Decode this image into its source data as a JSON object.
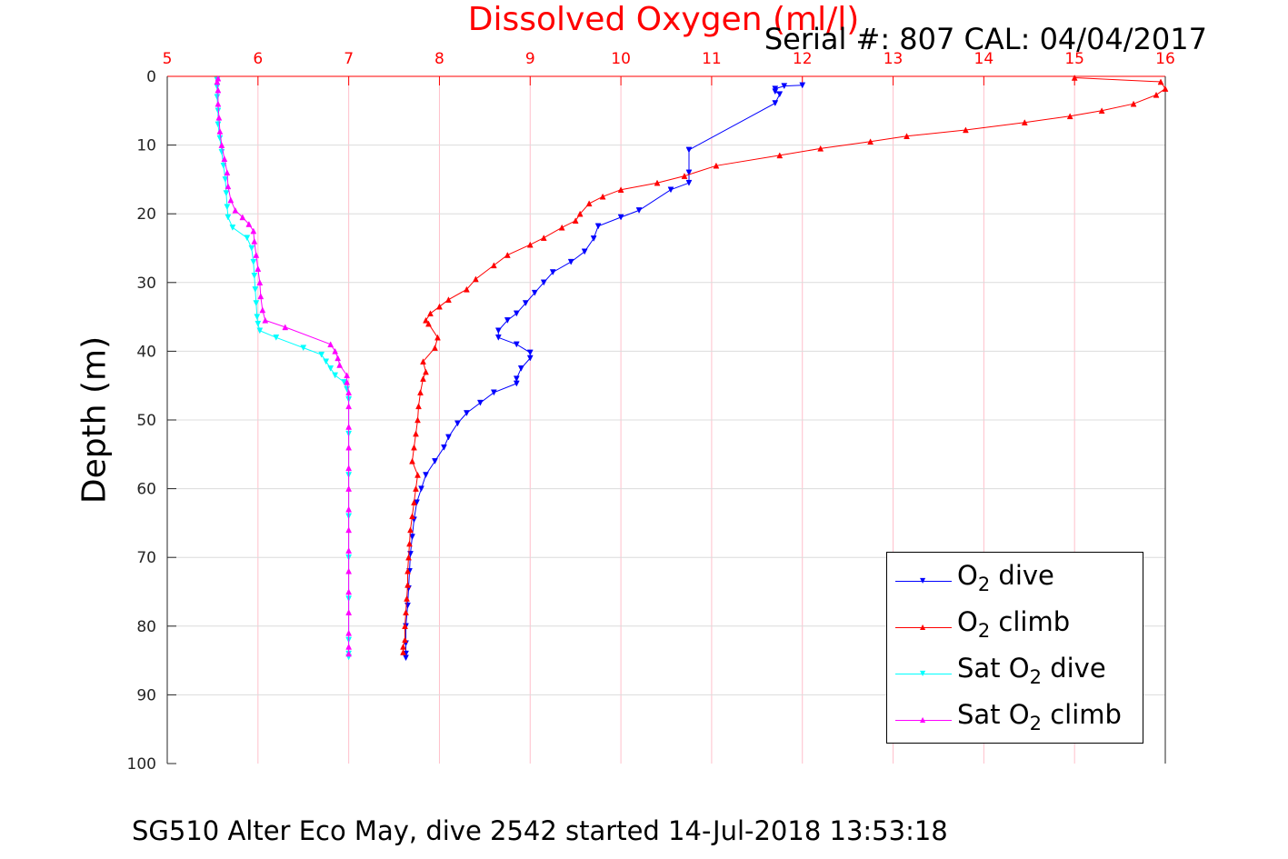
{
  "chart_data": {
    "type": "line",
    "title": "Dissolved Oxygen (ml/l)",
    "title_color": "#ff0000",
    "subtitle": "Serial #: 807  CAL: 04/04/2017",
    "xlabel": "",
    "ylabel": "Depth (m)",
    "footer": "SG510 Alter Eco May, dive 2542 started 14-Jul-2018 13:53:18",
    "xlim": [
      5,
      16
    ],
    "ylim": [
      0,
      100
    ],
    "y_reversed": true,
    "x_axis_position": "top",
    "x_tick_color": "#ff0000",
    "x_gridline_color": "#ffc0cb",
    "xticks": [
      "5",
      "6",
      "7",
      "8",
      "9",
      "10",
      "11",
      "12",
      "13",
      "14",
      "15",
      "16"
    ],
    "yticks": [
      "0",
      "10",
      "20",
      "30",
      "40",
      "50",
      "60",
      "70",
      "80",
      "90",
      "100"
    ],
    "grid": true,
    "legend_position": "bottom-right",
    "legend": [
      {
        "prefix": "O",
        "sub": "2",
        "suffix": " dive",
        "color": "#0000ff",
        "marker": "▼"
      },
      {
        "prefix": "O",
        "sub": "2",
        "suffix": " climb",
        "color": "#ff0000",
        "marker": "▲"
      },
      {
        "prefix": "Sat O",
        "sub": "2",
        "suffix": " dive",
        "color": "#00ffff",
        "marker": "▼"
      },
      {
        "prefix": "Sat O",
        "sub": "2",
        "suffix": " climb",
        "color": "#ff00ff",
        "marker": "▲"
      }
    ],
    "series": [
      {
        "name": "O2 dive",
        "color": "#0000ff",
        "marker": "down",
        "points": [
          [
            12.0,
            1.3
          ],
          [
            11.8,
            1.4
          ],
          [
            11.7,
            1.8
          ],
          [
            11.7,
            2.2
          ],
          [
            11.75,
            2.6
          ],
          [
            11.7,
            3.9
          ],
          [
            10.75,
            10.7
          ],
          [
            10.75,
            14.0
          ],
          [
            10.75,
            15.5
          ],
          [
            10.55,
            16.5
          ],
          [
            10.2,
            19.5
          ],
          [
            10.0,
            20.5
          ],
          [
            9.75,
            21.8
          ],
          [
            9.7,
            23.6
          ],
          [
            9.6,
            25.5
          ],
          [
            9.45,
            27.0
          ],
          [
            9.25,
            28.5
          ],
          [
            9.15,
            30.0
          ],
          [
            9.05,
            31.5
          ],
          [
            8.95,
            33.0
          ],
          [
            8.85,
            34.5
          ],
          [
            8.75,
            35.5
          ],
          [
            8.65,
            37.0
          ],
          [
            8.65,
            38.0
          ],
          [
            8.85,
            39.0
          ],
          [
            9.0,
            40.2
          ],
          [
            9.0,
            41.0
          ],
          [
            8.9,
            42.5
          ],
          [
            8.85,
            44.0
          ],
          [
            8.85,
            44.7
          ],
          [
            8.6,
            46.0
          ],
          [
            8.45,
            47.5
          ],
          [
            8.3,
            49.0
          ],
          [
            8.2,
            50.5
          ],
          [
            8.1,
            52.5
          ],
          [
            8.05,
            54.0
          ],
          [
            7.95,
            56.0
          ],
          [
            7.85,
            58.0
          ],
          [
            7.8,
            60.0
          ],
          [
            7.75,
            62.0
          ],
          [
            7.72,
            64.5
          ],
          [
            7.7,
            67.0
          ],
          [
            7.68,
            69.5
          ],
          [
            7.67,
            72.0
          ],
          [
            7.66,
            74.5
          ],
          [
            7.65,
            77.0
          ],
          [
            7.63,
            80.0
          ],
          [
            7.63,
            82.5
          ],
          [
            7.63,
            84.0
          ],
          [
            7.63,
            84.6
          ]
        ]
      },
      {
        "name": "O2 climb",
        "color": "#ff0000",
        "marker": "up",
        "points": [
          [
            7.6,
            83.8
          ],
          [
            7.6,
            83.0
          ],
          [
            7.62,
            82.0
          ],
          [
            7.62,
            80.0
          ],
          [
            7.63,
            78.0
          ],
          [
            7.64,
            76.0
          ],
          [
            7.65,
            74.0
          ],
          [
            7.65,
            72.0
          ],
          [
            7.66,
            70.0
          ],
          [
            7.67,
            68.0
          ],
          [
            7.68,
            66.0
          ],
          [
            7.7,
            64.0
          ],
          [
            7.72,
            62.0
          ],
          [
            7.74,
            60.0
          ],
          [
            7.76,
            58.0
          ],
          [
            7.7,
            56.0
          ],
          [
            7.72,
            54.0
          ],
          [
            7.74,
            52.0
          ],
          [
            7.76,
            50.0
          ],
          [
            7.77,
            48.0
          ],
          [
            7.79,
            46.0
          ],
          [
            7.82,
            44.0
          ],
          [
            7.85,
            43.0
          ],
          [
            7.82,
            41.5
          ],
          [
            7.95,
            39.5
          ],
          [
            7.98,
            38.0
          ],
          [
            7.88,
            36.0
          ],
          [
            7.85,
            35.5
          ],
          [
            7.9,
            34.5
          ],
          [
            8.0,
            33.5
          ],
          [
            8.1,
            32.5
          ],
          [
            8.3,
            31.0
          ],
          [
            8.4,
            29.5
          ],
          [
            8.6,
            27.5
          ],
          [
            8.75,
            26.0
          ],
          [
            9.0,
            24.5
          ],
          [
            9.15,
            23.5
          ],
          [
            9.35,
            22.0
          ],
          [
            9.5,
            21.0
          ],
          [
            9.55,
            20.0
          ],
          [
            9.65,
            18.5
          ],
          [
            9.8,
            17.5
          ],
          [
            10.0,
            16.5
          ],
          [
            10.4,
            15.5
          ],
          [
            10.7,
            14.5
          ],
          [
            11.05,
            13.0
          ],
          [
            11.75,
            11.5
          ],
          [
            12.2,
            10.5
          ],
          [
            12.75,
            9.5
          ],
          [
            13.15,
            8.7
          ],
          [
            13.8,
            7.8
          ],
          [
            14.45,
            6.7
          ],
          [
            14.95,
            5.8
          ],
          [
            15.3,
            5.0
          ],
          [
            15.65,
            4.0
          ],
          [
            15.9,
            2.7
          ],
          [
            16.0,
            1.8
          ],
          [
            15.95,
            0.8
          ],
          [
            15.0,
            0.2
          ]
        ]
      },
      {
        "name": "Sat O2 dive",
        "color": "#00ffff",
        "marker": "down",
        "points": [
          [
            5.55,
            0.5
          ],
          [
            5.55,
            1.5
          ],
          [
            5.55,
            3.0
          ],
          [
            5.56,
            5.0
          ],
          [
            5.56,
            7.0
          ],
          [
            5.58,
            9.0
          ],
          [
            5.6,
            11.0
          ],
          [
            5.62,
            13.0
          ],
          [
            5.64,
            15.0
          ],
          [
            5.65,
            17.0
          ],
          [
            5.66,
            19.0
          ],
          [
            5.67,
            20.5
          ],
          [
            5.72,
            22.0
          ],
          [
            5.88,
            23.5
          ],
          [
            5.93,
            25.0
          ],
          [
            5.95,
            27.0
          ],
          [
            5.96,
            29.0
          ],
          [
            5.97,
            31.0
          ],
          [
            5.98,
            33.0
          ],
          [
            5.99,
            35.0
          ],
          [
            6.0,
            36.0
          ],
          [
            6.02,
            37.0
          ],
          [
            6.2,
            38.0
          ],
          [
            6.5,
            39.5
          ],
          [
            6.7,
            40.5
          ],
          [
            6.75,
            41.5
          ],
          [
            6.8,
            42.5
          ],
          [
            6.85,
            43.5
          ],
          [
            6.95,
            44.5
          ],
          [
            6.98,
            45.5
          ],
          [
            7.0,
            47.0
          ],
          [
            7.0,
            52.0
          ],
          [
            7.0,
            58.0
          ],
          [
            7.0,
            64.0
          ],
          [
            7.0,
            70.0
          ],
          [
            7.0,
            76.0
          ],
          [
            7.0,
            82.0
          ],
          [
            7.0,
            84.0
          ],
          [
            7.0,
            84.5
          ]
        ]
      },
      {
        "name": "Sat O2 climb",
        "color": "#ff00ff",
        "marker": "up",
        "points": [
          [
            7.0,
            84.0
          ],
          [
            7.0,
            83.0
          ],
          [
            7.0,
            81.0
          ],
          [
            7.0,
            78.0
          ],
          [
            7.0,
            75.0
          ],
          [
            7.0,
            72.0
          ],
          [
            7.0,
            69.0
          ],
          [
            7.0,
            66.0
          ],
          [
            7.0,
            63.0
          ],
          [
            7.0,
            60.0
          ],
          [
            7.0,
            57.0
          ],
          [
            7.0,
            54.0
          ],
          [
            7.0,
            51.0
          ],
          [
            7.0,
            48.0
          ],
          [
            7.0,
            46.0
          ],
          [
            6.98,
            44.5
          ],
          [
            6.98,
            43.5
          ],
          [
            6.9,
            42.0
          ],
          [
            6.88,
            41.0
          ],
          [
            6.85,
            40.0
          ],
          [
            6.8,
            39.0
          ],
          [
            6.3,
            36.5
          ],
          [
            6.08,
            35.5
          ],
          [
            6.05,
            34.0
          ],
          [
            6.03,
            32.0
          ],
          [
            6.02,
            30.0
          ],
          [
            6.0,
            28.0
          ],
          [
            5.98,
            26.0
          ],
          [
            5.96,
            24.0
          ],
          [
            5.95,
            22.5
          ],
          [
            5.9,
            21.5
          ],
          [
            5.83,
            20.5
          ],
          [
            5.75,
            19.5
          ],
          [
            5.7,
            18.0
          ],
          [
            5.67,
            16.0
          ],
          [
            5.66,
            14.0
          ],
          [
            5.63,
            12.0
          ],
          [
            5.6,
            10.0
          ],
          [
            5.58,
            8.0
          ],
          [
            5.57,
            6.0
          ],
          [
            5.56,
            4.0
          ],
          [
            5.56,
            2.0
          ],
          [
            5.55,
            0.8
          ],
          [
            5.56,
            0.3
          ]
        ]
      }
    ]
  }
}
